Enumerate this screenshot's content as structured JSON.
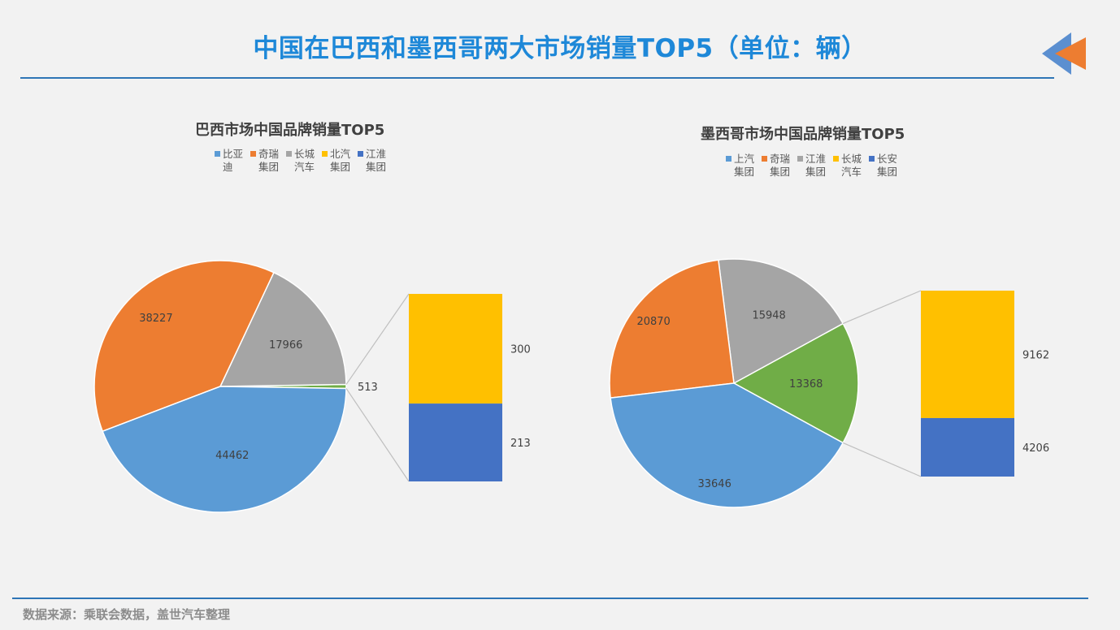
{
  "page": {
    "title": "中国在巴西和墨西哥两大市场销量TOP5（单位：辆）",
    "source": "数据来源：乘联会数据，盖世汽车整理"
  },
  "colors": {
    "blue": "#5b9bd5",
    "orange": "#ed7d31",
    "gray": "#a5a5a5",
    "yellow": "#ffc000",
    "darkblue": "#4472c4",
    "green": "#70ad47",
    "accent": "#2e75b6"
  },
  "chart_data": [
    {
      "type": "pie-of-pie",
      "title": "巴西市场中国品牌销量TOP5",
      "legend": [
        "比亚迪",
        "奇瑞集团",
        "长城汽车",
        "北汽集团",
        "江淮集团"
      ],
      "legend_colors": [
        "#5b9bd5",
        "#ed7d31",
        "#a5a5a5",
        "#ffc000",
        "#4472c4"
      ],
      "main_pie": [
        {
          "value": 44462,
          "label": "44462",
          "color": "#5b9bd5"
        },
        {
          "value": 38227,
          "label": "38227",
          "color": "#ed7d31"
        },
        {
          "value": 17966,
          "label": "17966",
          "color": "#a5a5a5"
        },
        {
          "value": 513,
          "label": "513",
          "color": "#70ad47"
        }
      ],
      "secondary_bar": [
        {
          "value": 300,
          "label": "300",
          "color": "#ffc000"
        },
        {
          "value": 213,
          "label": "213",
          "color": "#4472c4"
        }
      ]
    },
    {
      "type": "pie-of-pie",
      "title": "墨西哥市场中国品牌销量TOP5",
      "legend": [
        "上汽集团",
        "奇瑞集团",
        "江淮集团",
        "长城汽车",
        "长安集团"
      ],
      "legend_colors": [
        "#5b9bd5",
        "#ed7d31",
        "#a5a5a5",
        "#ffc000",
        "#4472c4"
      ],
      "main_pie": [
        {
          "value": 33646,
          "label": "33646",
          "color": "#5b9bd5"
        },
        {
          "value": 20870,
          "label": "20870",
          "color": "#ed7d31"
        },
        {
          "value": 15948,
          "label": "15948",
          "color": "#a5a5a5"
        },
        {
          "value": 13368,
          "label": "13368",
          "color": "#70ad47"
        }
      ],
      "secondary_bar": [
        {
          "value": 9162,
          "label": "9162",
          "color": "#ffc000"
        },
        {
          "value": 4206,
          "label": "4206",
          "color": "#4472c4"
        }
      ]
    }
  ]
}
